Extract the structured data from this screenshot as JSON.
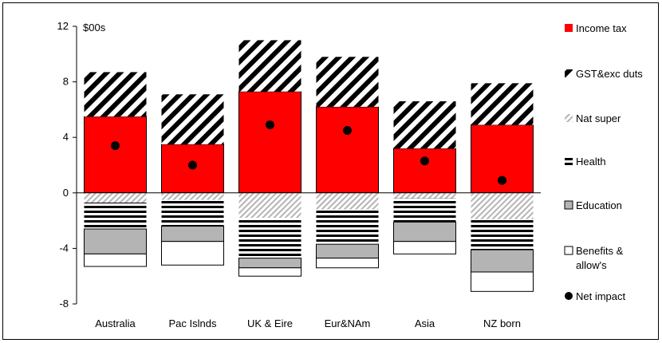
{
  "chart_data": {
    "type": "bar",
    "stacked": true,
    "unit_label": "$00s",
    "categories": [
      "Australia",
      "Pac Islnds",
      "UK & Eire",
      "Eur&NAm",
      "Asia",
      "NZ born"
    ],
    "ylim": [
      -8,
      12
    ],
    "yticks": [
      -8,
      -4,
      0,
      4,
      8,
      12
    ],
    "grid": false,
    "legend_position": "right",
    "series": [
      {
        "name": "Income tax",
        "color": "#ff0000",
        "pattern": "solid",
        "values": [
          5.5,
          3.5,
          7.3,
          6.2,
          3.2,
          4.9
        ]
      },
      {
        "name": "GST&exc duts",
        "color": "#000000",
        "pattern": "diagonal-hatch",
        "values": [
          3.2,
          3.6,
          3.7,
          3.6,
          3.4,
          3.0
        ]
      },
      {
        "name": "Nat super",
        "color": "#b4b4b4",
        "pattern": "light-diagonal-hatch",
        "values": [
          -0.7,
          -0.5,
          -1.8,
          -1.2,
          -0.4,
          -1.9
        ]
      },
      {
        "name": "Health",
        "color": "#000000",
        "pattern": "horizontal-lines",
        "values": [
          -1.9,
          -1.9,
          -2.9,
          -2.5,
          -1.7,
          -2.2
        ]
      },
      {
        "name": "Education",
        "color": "#b4b4b4",
        "pattern": "solid",
        "values": [
          -1.8,
          -1.1,
          -0.7,
          -1.0,
          -1.4,
          -1.6
        ]
      },
      {
        "name": "Benefits & allow's",
        "color": "#ffffff",
        "pattern": "solid-outlined",
        "values": [
          -0.9,
          -1.7,
          -0.6,
          -0.7,
          -0.9,
          -1.4
        ]
      }
    ],
    "net_impact": {
      "name": "Net impact",
      "values": [
        3.4,
        2.0,
        4.9,
        4.5,
        2.3,
        0.9
      ]
    }
  }
}
